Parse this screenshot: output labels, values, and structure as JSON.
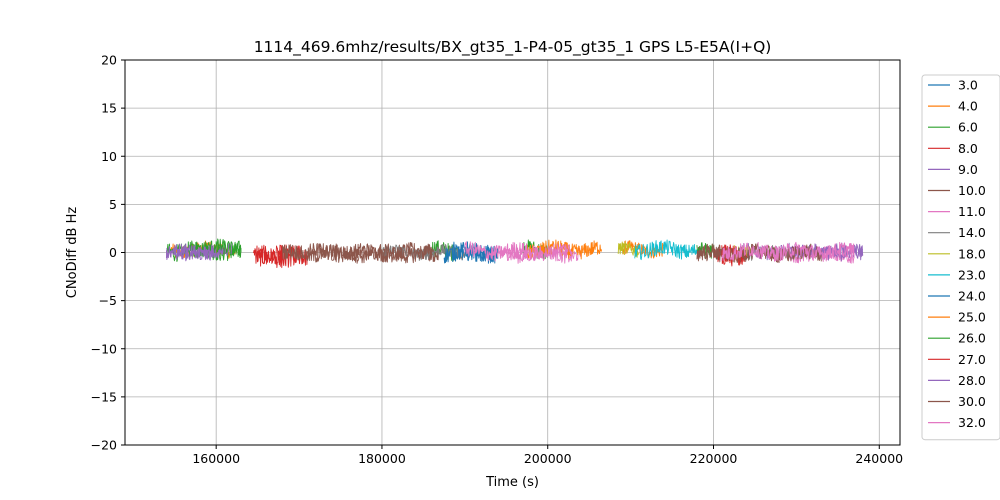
{
  "chart_data": {
    "type": "line",
    "title": "1114_469.6mhz/results/BX_gt35_1-P4-05_gt35_1 GPS L5-E5A(I+Q)",
    "xlabel": "Time (s)",
    "ylabel": "CNoDiff dB Hz",
    "xlim": [
      149000,
      242500
    ],
    "ylim": [
      -20,
      20
    ],
    "x_ticks": [
      160000,
      180000,
      200000,
      220000,
      240000
    ],
    "x_tick_labels": [
      "160000",
      "180000",
      "200000",
      "220000",
      "240000"
    ],
    "y_ticks": [
      -20,
      -15,
      -10,
      -5,
      0,
      5,
      10,
      15,
      20
    ],
    "y_tick_labels": [
      "−20",
      "−15",
      "−10",
      "−5",
      "0",
      "5",
      "10",
      "15",
      "20"
    ],
    "grid": true,
    "legend_position": "right-outside",
    "series": [
      {
        "name": "3.0",
        "color": "#1f77b4",
        "segments": [
          [
            188500,
            193000
          ]
        ],
        "amp": 0.9,
        "bias": 0.0
      },
      {
        "name": "4.0",
        "color": "#ff7f0e",
        "segments": [
          [
            154500,
            162500
          ],
          [
            209000,
            214000
          ]
        ],
        "amp": 0.7,
        "bias": 0.3
      },
      {
        "name": "6.0",
        "color": "#2ca02c",
        "segments": [
          [
            154000,
            163000
          ],
          [
            186000,
            189000
          ],
          [
            197000,
            200000
          ]
        ],
        "amp": 0.9,
        "bias": 0.2
      },
      {
        "name": "8.0",
        "color": "#d62728",
        "segments": [
          [
            165000,
            171000
          ],
          [
            220000,
            224000
          ]
        ],
        "amp": 0.9,
        "bias": -0.3
      },
      {
        "name": "9.0",
        "color": "#9467bd",
        "segments": [
          [
            154000,
            162000
          ],
          [
            223000,
            238000
          ]
        ],
        "amp": 0.7,
        "bias": 0.1
      },
      {
        "name": "10.0",
        "color": "#8c564b",
        "segments": [
          [
            171000,
            187000
          ],
          [
            218000,
            222000
          ]
        ],
        "amp": 0.8,
        "bias": 0.0
      },
      {
        "name": "11.0",
        "color": "#e377c2",
        "segments": [
          [
            193000,
            204000
          ],
          [
            227000,
            237000
          ]
        ],
        "amp": 0.7,
        "bias": -0.2
      },
      {
        "name": "14.0",
        "color": "#7f7f7f",
        "segments": [
          [
            180000,
            190000
          ],
          [
            224000,
            229000
          ]
        ],
        "amp": 0.6,
        "bias": 0.0
      },
      {
        "name": "18.0",
        "color": "#bcbd22",
        "segments": [
          [
            208500,
            211000
          ],
          [
            222500,
            224500
          ]
        ],
        "amp": 0.7,
        "bias": 0.2
      },
      {
        "name": "23.0",
        "color": "#17becf",
        "segments": [
          [
            210500,
            218000
          ]
        ],
        "amp": 0.8,
        "bias": 0.3
      },
      {
        "name": "24.0",
        "color": "#1f77b4",
        "segments": [
          [
            187500,
            194000
          ]
        ],
        "amp": 0.9,
        "bias": 0.0
      },
      {
        "name": "25.0",
        "color": "#ff7f0e",
        "segments": [
          [
            197500,
            206500
          ]
        ],
        "amp": 0.8,
        "bias": 0.3
      },
      {
        "name": "26.0",
        "color": "#2ca02c",
        "segments": [
          [
            157000,
            163000
          ],
          [
            218000,
            220000
          ]
        ],
        "amp": 0.8,
        "bias": 0.4
      },
      {
        "name": "27.0",
        "color": "#d62728",
        "segments": [
          [
            164500,
            170500
          ],
          [
            221000,
            224000
          ]
        ],
        "amp": 1.0,
        "bias": -0.4
      },
      {
        "name": "28.0",
        "color": "#9467bd",
        "segments": [
          [
            154000,
            160000
          ],
          [
            229000,
            238000
          ]
        ],
        "amp": 0.7,
        "bias": 0.0
      },
      {
        "name": "30.0",
        "color": "#8c564b",
        "segments": [
          [
            168000,
            186000
          ],
          [
            218000,
            233000
          ]
        ],
        "amp": 0.8,
        "bias": -0.1
      },
      {
        "name": "32.0",
        "color": "#e377c2",
        "segments": [
          [
            190000,
            203000
          ],
          [
            221000,
            237000
          ]
        ],
        "amp": 0.8,
        "bias": 0.1
      }
    ]
  }
}
